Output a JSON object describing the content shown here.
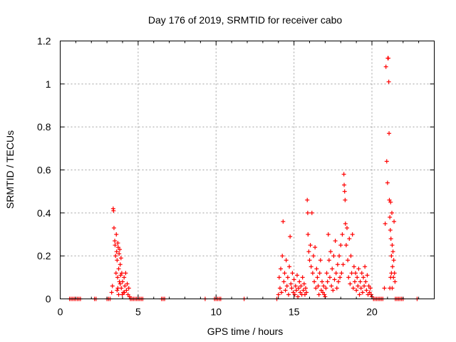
{
  "chart_data": {
    "type": "scatter",
    "title": "Day 176 of 2019, SRMTID for receiver cabo",
    "xlabel": "GPS time / hours",
    "ylabel": "SRMTID / TECUs",
    "xlim": [
      0,
      24
    ],
    "ylim": [
      0,
      1.2
    ],
    "xticks": [
      0,
      5,
      10,
      15,
      20
    ],
    "yticks": [
      0,
      0.2,
      0.4,
      0.6,
      0.8,
      1.0,
      1.2
    ],
    "xtick_labels": [
      "0",
      "5",
      "10",
      "15",
      "20"
    ],
    "ytick_labels": [
      "0",
      "0.2",
      "0.4",
      "0.6",
      "0.8",
      "1",
      "1.2"
    ],
    "grid": true,
    "marker": "+",
    "color": "#ff0000",
    "series": [
      {
        "name": "SRMTID",
        "points": [
          [
            0.6,
            0
          ],
          [
            0.7,
            0
          ],
          [
            0.8,
            0
          ],
          [
            0.9,
            0
          ],
          [
            1.0,
            0
          ],
          [
            1.1,
            0
          ],
          [
            1.2,
            0
          ],
          [
            1.3,
            0
          ],
          [
            2.2,
            0
          ],
          [
            2.3,
            0
          ],
          [
            3.0,
            0
          ],
          [
            3.1,
            0
          ],
          [
            3.2,
            0
          ],
          [
            3.3,
            0.03
          ],
          [
            3.35,
            0.06
          ],
          [
            3.4,
            0.42
          ],
          [
            3.42,
            0.41
          ],
          [
            3.45,
            0.33
          ],
          [
            3.5,
            0.27
          ],
          [
            3.52,
            0.25
          ],
          [
            3.55,
            0.2
          ],
          [
            3.58,
            0.12
          ],
          [
            3.6,
            0.3
          ],
          [
            3.62,
            0.22
          ],
          [
            3.65,
            0.18
          ],
          [
            3.68,
            0.1
          ],
          [
            3.7,
            0.26
          ],
          [
            3.72,
            0.24
          ],
          [
            3.75,
            0.14
          ],
          [
            3.78,
            0.21
          ],
          [
            3.8,
            0.08
          ],
          [
            3.82,
            0.23
          ],
          [
            3.85,
            0.16
          ],
          [
            3.88,
            0.11
          ],
          [
            3.9,
            0.19
          ],
          [
            3.92,
            0.05
          ],
          [
            3.95,
            0.12
          ],
          [
            3.98,
            0.02
          ],
          [
            4.0,
            0.08
          ],
          [
            4.05,
            0.03
          ],
          [
            4.1,
            0.1
          ],
          [
            4.15,
            0.06
          ],
          [
            4.2,
            0.12
          ],
          [
            4.25,
            0.04
          ],
          [
            4.3,
            0.07
          ],
          [
            4.35,
            0.02
          ],
          [
            4.4,
            0.05
          ],
          [
            4.45,
            0.01
          ],
          [
            3.7,
            0.05
          ],
          [
            3.75,
            0.02
          ],
          [
            3.65,
            0.04
          ],
          [
            3.85,
            0.07
          ],
          [
            4.12,
            0.03
          ],
          [
            4.5,
            0
          ],
          [
            4.6,
            0
          ],
          [
            4.7,
            0
          ],
          [
            4.8,
            0
          ],
          [
            4.9,
            0
          ],
          [
            5.0,
            0
          ],
          [
            5.1,
            0
          ],
          [
            5.2,
            0
          ],
          [
            5.3,
            0
          ],
          [
            6.5,
            0
          ],
          [
            6.6,
            0
          ],
          [
            6.7,
            0
          ],
          [
            9.3,
            0
          ],
          [
            9.9,
            0
          ],
          [
            10.0,
            0
          ],
          [
            10.1,
            0
          ],
          [
            10.2,
            0
          ],
          [
            10.3,
            0
          ],
          [
            11.8,
            0
          ],
          [
            13.9,
            0
          ],
          [
            14.0,
            0.02
          ],
          [
            14.05,
            0.1
          ],
          [
            14.1,
            0.05
          ],
          [
            14.15,
            0.14
          ],
          [
            14.2,
            0.03
          ],
          [
            14.25,
            0.2
          ],
          [
            14.3,
            0.36
          ],
          [
            14.35,
            0.08
          ],
          [
            14.4,
            0.12
          ],
          [
            14.45,
            0.04
          ],
          [
            14.5,
            0.18
          ],
          [
            14.55,
            0.06
          ],
          [
            14.6,
            0.1
          ],
          [
            14.65,
            0.02
          ],
          [
            14.7,
            0.15
          ],
          [
            14.75,
            0.29
          ],
          [
            14.8,
            0.07
          ],
          [
            14.85,
            0.05
          ],
          [
            14.9,
            0.12
          ],
          [
            14.95,
            0.03
          ],
          [
            15.0,
            0.09
          ],
          [
            15.05,
            0.02
          ],
          [
            15.1,
            0.06
          ],
          [
            15.15,
            0.04
          ],
          [
            15.2,
            0.11
          ],
          [
            15.25,
            0.01
          ],
          [
            15.3,
            0.05
          ],
          [
            15.35,
            0.08
          ],
          [
            15.4,
            0.03
          ],
          [
            15.45,
            0.06
          ],
          [
            15.5,
            0.02
          ],
          [
            15.55,
            0.1
          ],
          [
            15.6,
            0.04
          ],
          [
            15.65,
            0.07
          ],
          [
            15.7,
            0.02
          ],
          [
            15.75,
            0.05
          ],
          [
            15.8,
            0.03
          ],
          [
            15.85,
            0.46
          ],
          [
            15.88,
            0.4
          ],
          [
            15.9,
            0.3
          ],
          [
            15.95,
            0.22
          ],
          [
            16.0,
            0.18
          ],
          [
            16.05,
            0.25
          ],
          [
            16.1,
            0.15
          ],
          [
            16.15,
            0.4
          ],
          [
            16.2,
            0.12
          ],
          [
            16.25,
            0.2
          ],
          [
            16.3,
            0.08
          ],
          [
            16.35,
            0.24
          ],
          [
            16.4,
            0.05
          ],
          [
            16.45,
            0.14
          ],
          [
            16.5,
            0.1
          ],
          [
            16.55,
            0.06
          ],
          [
            16.6,
            0.02
          ],
          [
            16.65,
            0.12
          ],
          [
            16.7,
            0.18
          ],
          [
            16.75,
            0.04
          ],
          [
            16.8,
            0.08
          ],
          [
            16.85,
            0.03
          ],
          [
            16.9,
            0.06
          ],
          [
            16.95,
            0.02
          ],
          [
            17.0,
            0.01
          ],
          [
            17.05,
            0.05
          ],
          [
            17.1,
            0.12
          ],
          [
            17.15,
            0.08
          ],
          [
            17.2,
            0.3
          ],
          [
            17.25,
            0.18
          ],
          [
            17.3,
            0.1
          ],
          [
            17.35,
            0.22
          ],
          [
            17.4,
            0.06
          ],
          [
            17.45,
            0.14
          ],
          [
            17.5,
            0.04
          ],
          [
            17.55,
            0.2
          ],
          [
            17.6,
            0.09
          ],
          [
            17.65,
            0.27
          ],
          [
            17.7,
            0.12
          ],
          [
            17.75,
            0.05
          ],
          [
            17.8,
            0.16
          ],
          [
            17.85,
            0.08
          ],
          [
            17.9,
            0.2
          ],
          [
            17.95,
            0.1
          ],
          [
            18.0,
            0.25
          ],
          [
            18.05,
            0.12
          ],
          [
            18.1,
            0.3
          ],
          [
            18.15,
            0.16
          ],
          [
            18.2,
            0.58
          ],
          [
            18.22,
            0.53
          ],
          [
            18.25,
            0.5
          ],
          [
            18.28,
            0.46
          ],
          [
            18.3,
            0.35
          ],
          [
            18.35,
            0.25
          ],
          [
            18.4,
            0.33
          ],
          [
            18.45,
            0.18
          ],
          [
            18.5,
            0.1
          ],
          [
            18.55,
            0.28
          ],
          [
            18.6,
            0.07
          ],
          [
            18.65,
            0.2
          ],
          [
            18.7,
            0.12
          ],
          [
            18.75,
            0.3
          ],
          [
            18.8,
            0.05
          ],
          [
            18.85,
            0.15
          ],
          [
            18.9,
            0.08
          ],
          [
            18.95,
            0.12
          ],
          [
            19.0,
            0.04
          ],
          [
            19.05,
            0.1
          ],
          [
            19.1,
            0.06
          ],
          [
            19.15,
            0.14
          ],
          [
            19.2,
            0.02
          ],
          [
            19.25,
            0.08
          ],
          [
            19.3,
            0.05
          ],
          [
            19.35,
            0.12
          ],
          [
            19.4,
            0.03
          ],
          [
            19.45,
            0.1
          ],
          [
            19.5,
            0.06
          ],
          [
            19.55,
            0.15
          ],
          [
            19.6,
            0.08
          ],
          [
            19.65,
            0.04
          ],
          [
            19.7,
            0.11
          ],
          [
            19.75,
            0.02
          ],
          [
            19.8,
            0.06
          ],
          [
            19.85,
            0.03
          ],
          [
            19.9,
            0.05
          ],
          [
            19.95,
            0.02
          ],
          [
            20.0,
            0.01
          ],
          [
            20.1,
            0
          ],
          [
            20.2,
            0
          ],
          [
            20.3,
            0
          ],
          [
            20.4,
            0
          ],
          [
            20.5,
            0
          ],
          [
            20.6,
            0
          ],
          [
            20.7,
            0
          ],
          [
            20.8,
            0.05
          ],
          [
            20.85,
            0.35
          ],
          [
            20.9,
            1.08
          ],
          [
            20.95,
            0.64
          ],
          [
            21.0,
            0.54
          ],
          [
            21.02,
            1.12
          ],
          [
            21.05,
            1.12
          ],
          [
            21.08,
            1.01
          ],
          [
            21.1,
            0.77
          ],
          [
            21.12,
            0.46
          ],
          [
            21.15,
            0.38
          ],
          [
            21.18,
            0.32
          ],
          [
            21.2,
            0.45
          ],
          [
            21.22,
            0.28
          ],
          [
            21.25,
            0.2
          ],
          [
            21.28,
            0.4
          ],
          [
            21.3,
            0.25
          ],
          [
            21.32,
            0.15
          ],
          [
            21.35,
            0.22
          ],
          [
            21.38,
            0.1
          ],
          [
            21.4,
            0.18
          ],
          [
            21.42,
            0.36
          ],
          [
            21.45,
            0.12
          ],
          [
            21.48,
            0.08
          ],
          [
            21.15,
            0.05
          ],
          [
            21.2,
            0.1
          ],
          [
            21.3,
            0.05
          ],
          [
            21.25,
            0.12
          ],
          [
            21.5,
            0
          ],
          [
            21.6,
            0
          ],
          [
            21.7,
            0
          ],
          [
            21.8,
            0
          ],
          [
            21.9,
            0
          ],
          [
            22.0,
            0
          ],
          [
            22.9,
            0
          ]
        ]
      }
    ]
  }
}
